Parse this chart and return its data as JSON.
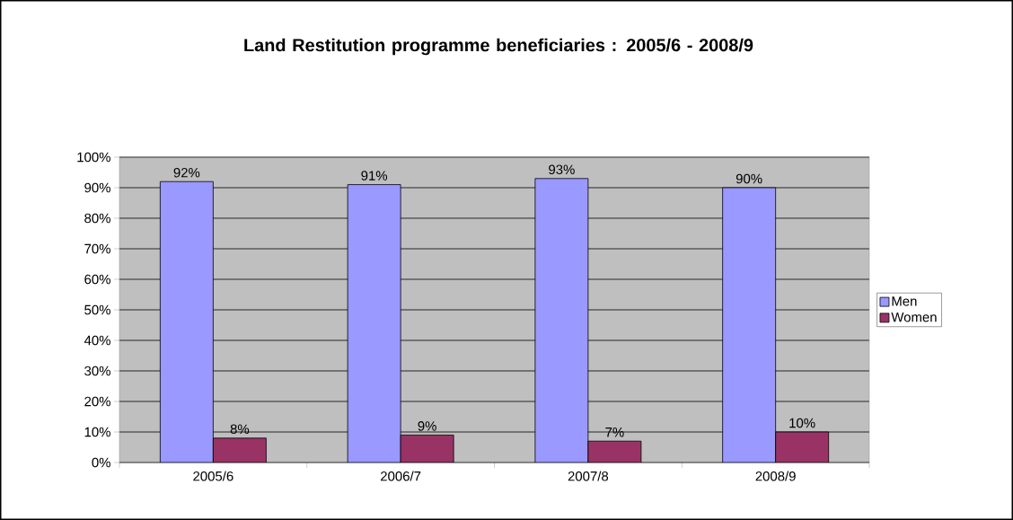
{
  "chart_data": {
    "type": "bar",
    "title": "Land Restitution programme beneficiaries : 2005/6 - 2008/9",
    "categories": [
      "2005/6",
      "2006/7",
      "2007/8",
      "2008/9"
    ],
    "series": [
      {
        "name": "Men",
        "color": "#9999ff",
        "values": [
          92,
          91,
          93,
          90
        ],
        "value_labels": [
          "92%",
          "91%",
          "93%",
          "90%"
        ]
      },
      {
        "name": "Women",
        "color": "#993366",
        "values": [
          8,
          9,
          7,
          10
        ],
        "value_labels": [
          "8%",
          "9%",
          "7%",
          "10%"
        ]
      }
    ],
    "ylim": [
      0,
      100
    ],
    "yticks": [
      {
        "value": 0,
        "label": "0%"
      },
      {
        "value": 10,
        "label": "10%"
      },
      {
        "value": 20,
        "label": "20%"
      },
      {
        "value": 30,
        "label": "30%"
      },
      {
        "value": 40,
        "label": "40%"
      },
      {
        "value": 50,
        "label": "50%"
      },
      {
        "value": 60,
        "label": "60%"
      },
      {
        "value": 70,
        "label": "70%"
      },
      {
        "value": 80,
        "label": "80%"
      },
      {
        "value": 90,
        "label": "90%"
      },
      {
        "value": 100,
        "label": "100%"
      }
    ],
    "grid": "y",
    "legend": "right"
  }
}
